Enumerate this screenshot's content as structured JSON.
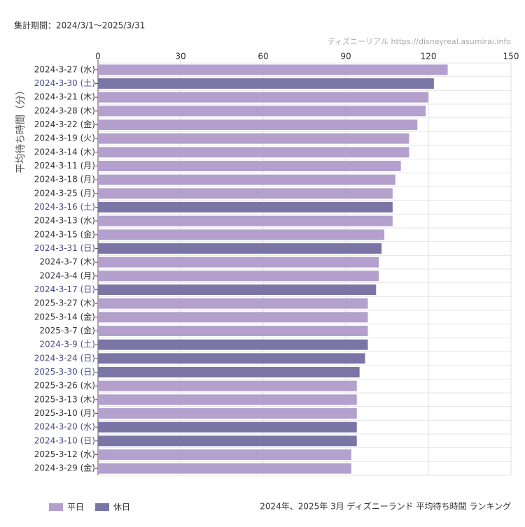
{
  "chart_data": {
    "type": "bar",
    "horizontal": true,
    "title": "2024年、2025年 3月 ディズニーランド 平均待ち時間 ランキング",
    "subtitle": "集計期間：2024/3/1～2025/3/31",
    "source": "ディズニーリアル  https://disneyreal.asumirai.info",
    "ylabel": "平均待ち時間（分）",
    "categories": [
      "2024-3-27 (水)",
      "2024-3-30 (土)",
      "2024-3-21 (木)",
      "2024-3-28 (木)",
      "2024-3-22 (金)",
      "2024-3-19 (火)",
      "2024-3-14 (木)",
      "2024-3-11 (月)",
      "2024-3-18 (月)",
      "2024-3-25 (月)",
      "2024-3-16 (土)",
      "2024-3-13 (水)",
      "2024-3-15 (金)",
      "2024-3-31 (日)",
      "2024-3-7 (木)",
      "2024-3-4 (月)",
      "2024-3-17 (日)",
      "2025-3-27 (木)",
      "2025-3-14 (金)",
      "2025-3-7 (金)",
      "2024-3-9 (土)",
      "2024-3-24 (日)",
      "2025-3-30 (日)",
      "2025-3-26 (水)",
      "2025-3-13 (木)",
      "2025-3-10 (月)",
      "2024-3-20 (水)",
      "2024-3-10 (日)",
      "2025-3-12 (水)",
      "2024-3-29 (金)"
    ],
    "series": [
      {
        "name": "平日",
        "color": "#b3a0cd",
        "label_color": "#333333",
        "values": [
          127,
          null,
          120,
          119,
          116,
          113,
          113,
          110,
          108,
          107,
          null,
          107,
          104,
          null,
          102,
          102,
          null,
          98,
          98,
          98,
          null,
          null,
          null,
          94,
          94,
          94,
          null,
          null,
          92,
          92
        ]
      },
      {
        "name": "休日",
        "color": "#7b75a5",
        "label_color": "#4b4a88",
        "values": [
          null,
          122,
          null,
          null,
          null,
          null,
          null,
          null,
          null,
          null,
          107,
          null,
          null,
          103,
          null,
          null,
          101,
          null,
          null,
          null,
          98,
          97,
          95,
          null,
          null,
          null,
          94,
          94,
          null,
          null
        ]
      }
    ],
    "xlim": [
      0,
      150
    ],
    "xticks": [
      0,
      30,
      60,
      90,
      120,
      150
    ],
    "grid": true
  }
}
